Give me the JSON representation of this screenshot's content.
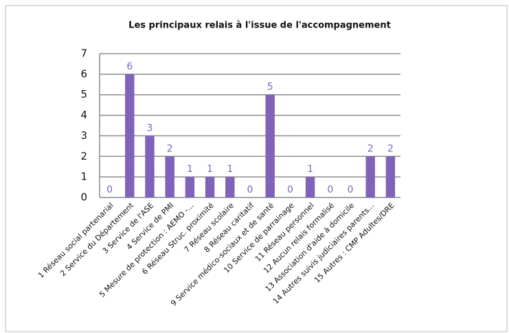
{
  "chart_data": {
    "type": "bar",
    "title": "Les principaux relais à l'issue de l'accompagnement",
    "categories": [
      "1 Réseau social partenarial",
      "2 Service du Département",
      "3 Service de l'ASE",
      "4 Service de PMI",
      "5 Mesure de protection : AEMO -...",
      "6 Réseau Struc. proximité",
      "7 Réseau scolaire",
      "8 Réseau caritatif",
      "9 Service médico-sociaux et de santé",
      "10 Service de parrainage",
      "11 Réseau personnel",
      "12 Aucun relais formalisé",
      "13 Association d'aide à domicile",
      "14 Autres suivis judiciaires parents...",
      "15  Autres : CMP Adultes/DRE"
    ],
    "values": [
      0,
      6,
      3,
      2,
      1,
      1,
      1,
      0,
      5,
      0,
      1,
      0,
      0,
      2,
      2
    ],
    "color": "#7f63b8",
    "ylim": [
      0,
      7
    ],
    "yticks": [
      0,
      1,
      2,
      3,
      4,
      5,
      6,
      7
    ],
    "grid": true
  }
}
